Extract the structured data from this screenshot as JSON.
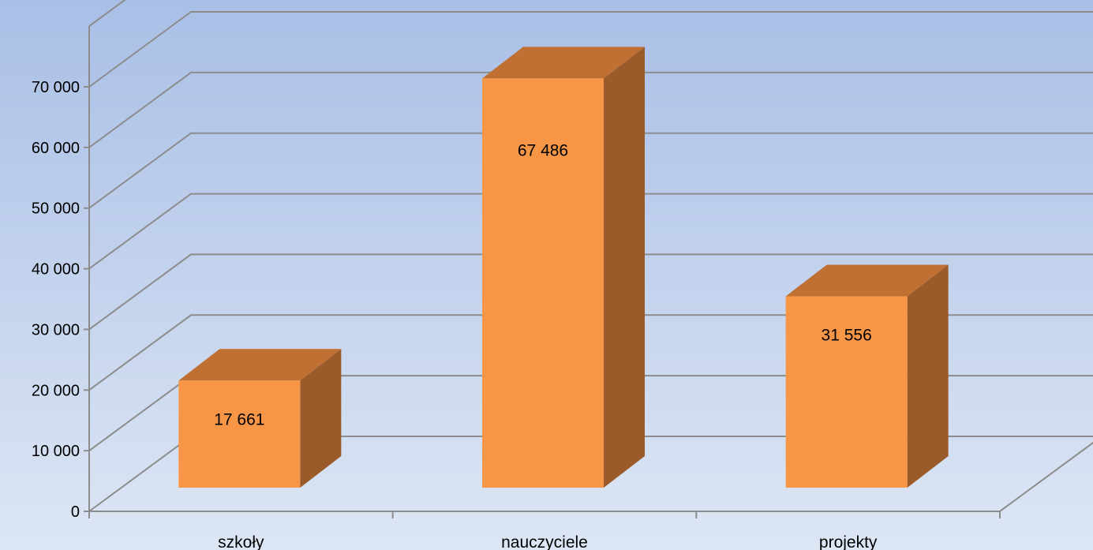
{
  "chart_data": {
    "type": "bar",
    "categories": [
      "szkoły",
      "nauczyciele",
      "projekty"
    ],
    "values": [
      17661,
      67486,
      31556
    ],
    "data_labels": [
      "17 661",
      "67 486",
      "31 556"
    ],
    "y_ticks": [
      0,
      10000,
      20000,
      30000,
      40000,
      50000,
      60000,
      70000
    ],
    "y_tick_labels": [
      "0",
      "10 000",
      "20 000",
      "30 000",
      "40 000",
      "50 000",
      "60 000",
      "70 000"
    ],
    "ylim": [
      0,
      70000
    ],
    "grid": true,
    "legend": "none",
    "style": "3d-column",
    "colors": {
      "bar_front": "#f79646",
      "bar_top": "#c07033",
      "bar_side": "#9b5a2a",
      "gridline": "#8c8c8c",
      "background_top": "#a9bfe6",
      "background_bottom": "#dde6f4"
    }
  }
}
